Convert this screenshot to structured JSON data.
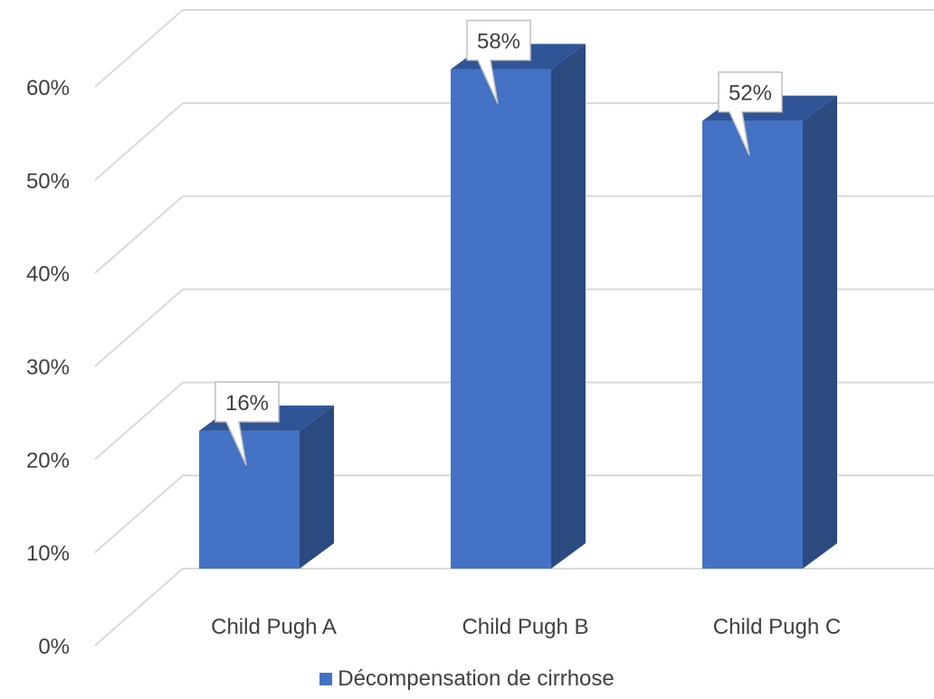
{
  "chart_data": {
    "type": "bar",
    "categories": [
      "Child Pugh A",
      "Child Pugh B",
      "Child Pugh C"
    ],
    "series": [
      {
        "name": "Décompensation de cirrhose",
        "values": [
          16,
          58,
          52
        ]
      }
    ],
    "data_labels": [
      "16%",
      "58%",
      "52%"
    ],
    "y_ticks": [
      "0%",
      "10%",
      "20%",
      "30%",
      "40%",
      "50%",
      "60%"
    ],
    "ylim": [
      0,
      60
    ],
    "grid": true,
    "legend_position": "bottom",
    "style": "3d-column",
    "colors": {
      "bar_front": "#4472C4",
      "bar_top": "#2F5597",
      "bar_side": "#2B4A80",
      "grid": "#D9D9D9",
      "text": "#404040"
    }
  }
}
